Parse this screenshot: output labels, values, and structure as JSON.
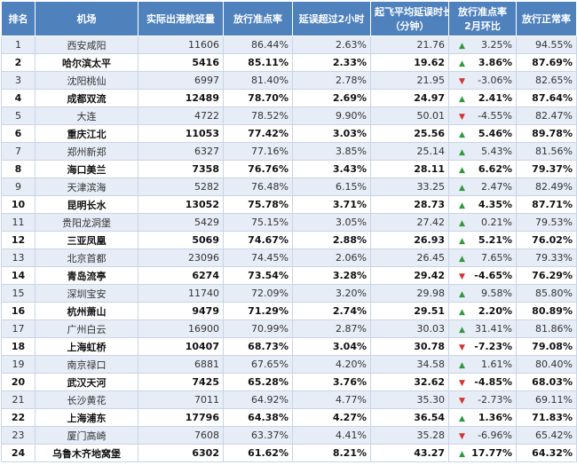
{
  "headers": [
    "排名",
    "机场",
    "实际出港航班量",
    "放行准点率",
    "延误超过2小时",
    "起飞平均延误时长（分钟）",
    "放行准点率2月环比",
    "放行正常率"
  ],
  "header_lines": {
    "avg_delay": [
      "起飞平均延误时长",
      "（分钟）"
    ],
    "mom": [
      "放行准点率",
      "2月环比"
    ]
  },
  "rows": [
    {
      "rank": "1",
      "airport": "西安咸阳",
      "flights": "11606",
      "ontime": "86.44%",
      "delay2h": "2.63%",
      "avg_delay": "21.76",
      "trend": "up",
      "mom": "3.25%",
      "normal": "94.55%",
      "bold": false
    },
    {
      "rank": "2",
      "airport": "哈尔滨太平",
      "flights": "5416",
      "ontime": "85.11%",
      "delay2h": "2.33%",
      "avg_delay": "19.62",
      "trend": "up",
      "mom": "3.86%",
      "normal": "87.69%",
      "bold": true
    },
    {
      "rank": "3",
      "airport": "沈阳桃仙",
      "flights": "6997",
      "ontime": "81.40%",
      "delay2h": "2.78%",
      "avg_delay": "21.95",
      "trend": "down",
      "mom": "-3.06%",
      "normal": "82.65%",
      "bold": false
    },
    {
      "rank": "4",
      "airport": "成都双流",
      "flights": "12489",
      "ontime": "78.70%",
      "delay2h": "2.69%",
      "avg_delay": "24.97",
      "trend": "up",
      "mom": "2.41%",
      "normal": "87.64%",
      "bold": true
    },
    {
      "rank": "5",
      "airport": "大连",
      "flights": "4722",
      "ontime": "78.52%",
      "delay2h": "9.90%",
      "avg_delay": "50.01",
      "trend": "down",
      "mom": "-4.55%",
      "normal": "82.47%",
      "bold": false
    },
    {
      "rank": "6",
      "airport": "重庆江北",
      "flights": "11053",
      "ontime": "77.42%",
      "delay2h": "3.03%",
      "avg_delay": "25.56",
      "trend": "up",
      "mom": "5.46%",
      "normal": "89.78%",
      "bold": true
    },
    {
      "rank": "7",
      "airport": "郑州新郑",
      "flights": "6327",
      "ontime": "77.16%",
      "delay2h": "3.85%",
      "avg_delay": "25.14",
      "trend": "up",
      "mom": "5.43%",
      "normal": "81.56%",
      "bold": false
    },
    {
      "rank": "8",
      "airport": "海口美兰",
      "flights": "7358",
      "ontime": "76.76%",
      "delay2h": "3.43%",
      "avg_delay": "28.11",
      "trend": "up",
      "mom": "6.62%",
      "normal": "79.37%",
      "bold": true
    },
    {
      "rank": "9",
      "airport": "天津滨海",
      "flights": "5282",
      "ontime": "76.48%",
      "delay2h": "6.15%",
      "avg_delay": "33.25",
      "trend": "up",
      "mom": "2.47%",
      "normal": "82.49%",
      "bold": false
    },
    {
      "rank": "10",
      "airport": "昆明长水",
      "flights": "13052",
      "ontime": "75.78%",
      "delay2h": "3.71%",
      "avg_delay": "28.73",
      "trend": "up",
      "mom": "4.35%",
      "normal": "87.71%",
      "bold": true
    },
    {
      "rank": "11",
      "airport": "贵阳龙洞堡",
      "flights": "5429",
      "ontime": "75.15%",
      "delay2h": "3.05%",
      "avg_delay": "27.42",
      "trend": "up",
      "mom": "0.21%",
      "normal": "79.53%",
      "bold": false
    },
    {
      "rank": "12",
      "airport": "三亚凤凰",
      "flights": "5069",
      "ontime": "74.67%",
      "delay2h": "2.88%",
      "avg_delay": "26.93",
      "trend": "up",
      "mom": "5.21%",
      "normal": "76.02%",
      "bold": true
    },
    {
      "rank": "13",
      "airport": "北京首都",
      "flights": "23096",
      "ontime": "74.45%",
      "delay2h": "2.06%",
      "avg_delay": "26.45",
      "trend": "up",
      "mom": "7.65%",
      "normal": "79.33%",
      "bold": false
    },
    {
      "rank": "14",
      "airport": "青岛流亭",
      "flights": "6274",
      "ontime": "73.54%",
      "delay2h": "3.28%",
      "avg_delay": "29.42",
      "trend": "down",
      "mom": "-4.65%",
      "normal": "76.29%",
      "bold": true
    },
    {
      "rank": "15",
      "airport": "深圳宝安",
      "flights": "11740",
      "ontime": "72.09%",
      "delay2h": "3.20%",
      "avg_delay": "29.98",
      "trend": "up",
      "mom": "9.58%",
      "normal": "85.80%",
      "bold": false
    },
    {
      "rank": "16",
      "airport": "杭州萧山",
      "flights": "9479",
      "ontime": "71.29%",
      "delay2h": "2.74%",
      "avg_delay": "29.51",
      "trend": "up",
      "mom": "2.20%",
      "normal": "80.89%",
      "bold": true
    },
    {
      "rank": "17",
      "airport": "广州白云",
      "flights": "16900",
      "ontime": "70.99%",
      "delay2h": "2.87%",
      "avg_delay": "30.03",
      "trend": "up",
      "mom": "31.41%",
      "normal": "81.86%",
      "bold": false
    },
    {
      "rank": "18",
      "airport": "上海虹桥",
      "flights": "10407",
      "ontime": "68.73%",
      "delay2h": "3.04%",
      "avg_delay": "30.78",
      "trend": "down",
      "mom": "-7.23%",
      "normal": "79.08%",
      "bold": true
    },
    {
      "rank": "19",
      "airport": "南京禄口",
      "flights": "6881",
      "ontime": "67.65%",
      "delay2h": "4.20%",
      "avg_delay": "34.58",
      "trend": "up",
      "mom": "1.61%",
      "normal": "80.40%",
      "bold": false
    },
    {
      "rank": "20",
      "airport": "武汉天河",
      "flights": "7425",
      "ontime": "65.28%",
      "delay2h": "3.76%",
      "avg_delay": "32.62",
      "trend": "down",
      "mom": "-4.85%",
      "normal": "68.03%",
      "bold": true
    },
    {
      "rank": "21",
      "airport": "长沙黄花",
      "flights": "7011",
      "ontime": "64.92%",
      "delay2h": "4.77%",
      "avg_delay": "35.30",
      "trend": "down",
      "mom": "-2.73%",
      "normal": "69.11%",
      "bold": false
    },
    {
      "rank": "22",
      "airport": "上海浦东",
      "flights": "17796",
      "ontime": "64.38%",
      "delay2h": "4.27%",
      "avg_delay": "36.54",
      "trend": "up",
      "mom": "1.36%",
      "normal": "71.83%",
      "bold": true
    },
    {
      "rank": "23",
      "airport": "厦门高崎",
      "flights": "7608",
      "ontime": "63.37%",
      "delay2h": "4.41%",
      "avg_delay": "35.28",
      "trend": "down",
      "mom": "-6.96%",
      "normal": "65.42%",
      "bold": false
    },
    {
      "rank": "24",
      "airport": "乌鲁木齐地窝堡",
      "flights": "6302",
      "ontime": "61.62%",
      "delay2h": "8.21%",
      "avg_delay": "43.27",
      "trend": "up",
      "mom": "17.77%",
      "normal": "64.32%",
      "bold": true
    }
  ],
  "colors": {
    "header_bg": "#4f81bd",
    "band": "#e6edf7",
    "up": "#2e9b3a",
    "down": "#d9302b"
  },
  "icons": {
    "up": "triangle-up-icon",
    "down": "triangle-down-icon"
  }
}
